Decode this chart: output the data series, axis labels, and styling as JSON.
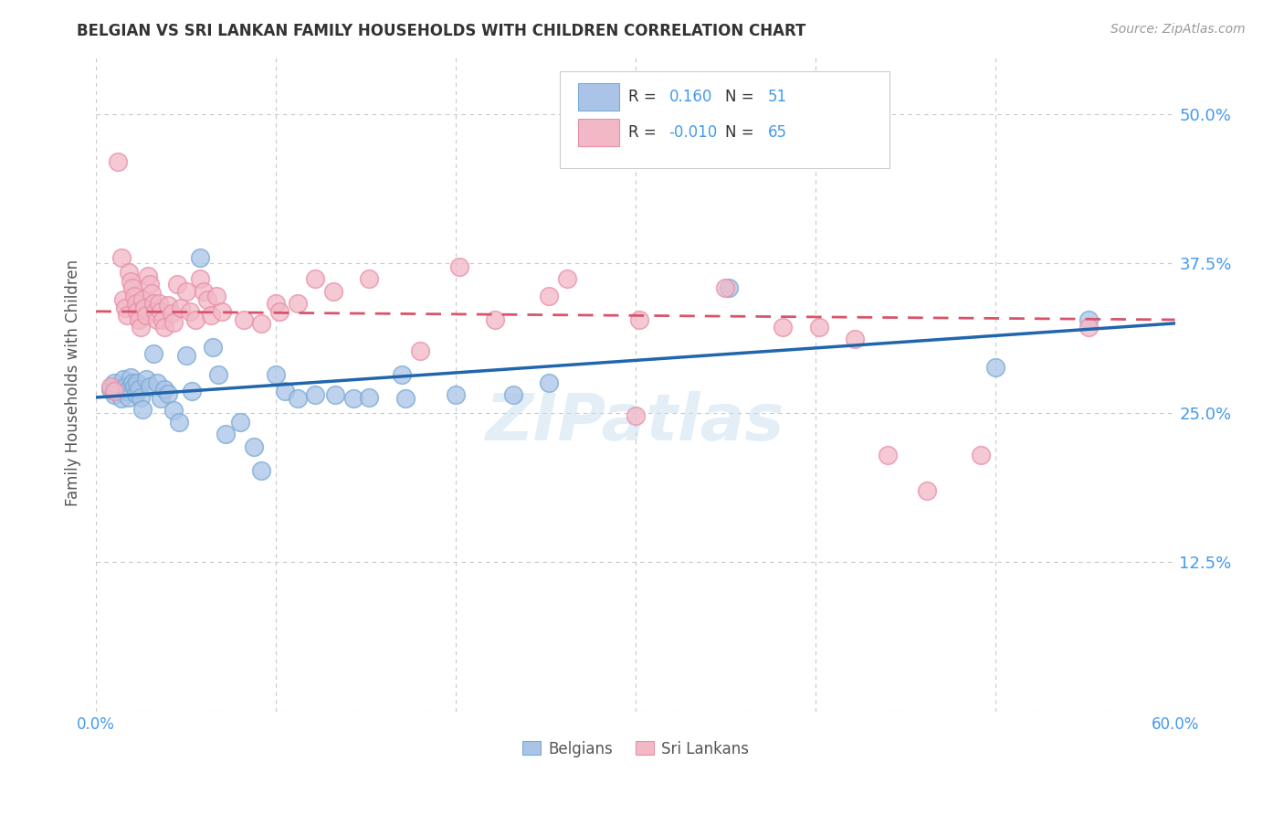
{
  "title": "BELGIAN VS SRI LANKAN FAMILY HOUSEHOLDS WITH CHILDREN CORRELATION CHART",
  "source": "Source: ZipAtlas.com",
  "ylabel": "Family Households with Children",
  "xlim": [
    0.0,
    0.6
  ],
  "ylim": [
    0.0,
    0.55
  ],
  "yticks": [
    0.0,
    0.125,
    0.25,
    0.375,
    0.5
  ],
  "ytick_labels": [
    "",
    "12.5%",
    "25.0%",
    "37.5%",
    "50.0%"
  ],
  "xticks": [
    0.0,
    0.1,
    0.2,
    0.3,
    0.4,
    0.5,
    0.6
  ],
  "xtick_labels": [
    "0.0%",
    "",
    "",
    "",
    "",
    "",
    "60.0%"
  ],
  "belgian_color": "#aac4e8",
  "srilanka_color": "#f2b8c6",
  "belgian_edge_color": "#7aaad4",
  "srilanka_edge_color": "#e890a8",
  "belgian_line_color": "#2166ac",
  "srilanka_line_color": "#d9536a",
  "belgian_R": 0.16,
  "belgian_N": 51,
  "srilanka_R": -0.01,
  "srilanka_N": 65,
  "grid_color": "#c8c8c8",
  "background_color": "#ffffff",
  "title_color": "#333333",
  "axis_label_color": "#555555",
  "tick_label_color": "#4499ee",
  "watermark": "ZIPatlas",
  "belgians_scatter": [
    [
      0.008,
      0.27
    ],
    [
      0.01,
      0.275
    ],
    [
      0.01,
      0.265
    ],
    [
      0.012,
      0.27
    ],
    [
      0.013,
      0.268
    ],
    [
      0.014,
      0.262
    ],
    [
      0.015,
      0.278
    ],
    [
      0.016,
      0.272
    ],
    [
      0.017,
      0.268
    ],
    [
      0.018,
      0.263
    ],
    [
      0.019,
      0.28
    ],
    [
      0.02,
      0.275
    ],
    [
      0.021,
      0.272
    ],
    [
      0.022,
      0.266
    ],
    [
      0.023,
      0.275
    ],
    [
      0.024,
      0.27
    ],
    [
      0.025,
      0.263
    ],
    [
      0.026,
      0.253
    ],
    [
      0.028,
      0.278
    ],
    [
      0.03,
      0.272
    ],
    [
      0.032,
      0.3
    ],
    [
      0.034,
      0.275
    ],
    [
      0.036,
      0.262
    ],
    [
      0.038,
      0.27
    ],
    [
      0.04,
      0.266
    ],
    [
      0.043,
      0.252
    ],
    [
      0.046,
      0.242
    ],
    [
      0.05,
      0.298
    ],
    [
      0.053,
      0.268
    ],
    [
      0.058,
      0.38
    ],
    [
      0.065,
      0.305
    ],
    [
      0.068,
      0.282
    ],
    [
      0.072,
      0.232
    ],
    [
      0.08,
      0.242
    ],
    [
      0.088,
      0.222
    ],
    [
      0.092,
      0.202
    ],
    [
      0.1,
      0.282
    ],
    [
      0.105,
      0.268
    ],
    [
      0.112,
      0.262
    ],
    [
      0.122,
      0.265
    ],
    [
      0.133,
      0.265
    ],
    [
      0.143,
      0.262
    ],
    [
      0.152,
      0.263
    ],
    [
      0.17,
      0.282
    ],
    [
      0.172,
      0.262
    ],
    [
      0.2,
      0.265
    ],
    [
      0.232,
      0.265
    ],
    [
      0.252,
      0.275
    ],
    [
      0.352,
      0.355
    ],
    [
      0.5,
      0.288
    ],
    [
      0.552,
      0.328
    ]
  ],
  "srilanka_scatter": [
    [
      0.008,
      0.272
    ],
    [
      0.01,
      0.268
    ],
    [
      0.012,
      0.46
    ],
    [
      0.014,
      0.38
    ],
    [
      0.015,
      0.345
    ],
    [
      0.016,
      0.338
    ],
    [
      0.017,
      0.332
    ],
    [
      0.018,
      0.368
    ],
    [
      0.019,
      0.36
    ],
    [
      0.02,
      0.355
    ],
    [
      0.021,
      0.348
    ],
    [
      0.022,
      0.342
    ],
    [
      0.023,
      0.335
    ],
    [
      0.024,
      0.328
    ],
    [
      0.025,
      0.322
    ],
    [
      0.026,
      0.345
    ],
    [
      0.027,
      0.338
    ],
    [
      0.028,
      0.332
    ],
    [
      0.029,
      0.365
    ],
    [
      0.03,
      0.358
    ],
    [
      0.031,
      0.35
    ],
    [
      0.032,
      0.342
    ],
    [
      0.033,
      0.335
    ],
    [
      0.034,
      0.328
    ],
    [
      0.035,
      0.342
    ],
    [
      0.036,
      0.335
    ],
    [
      0.037,
      0.328
    ],
    [
      0.038,
      0.322
    ],
    [
      0.04,
      0.34
    ],
    [
      0.042,
      0.333
    ],
    [
      0.043,
      0.326
    ],
    [
      0.045,
      0.358
    ],
    [
      0.047,
      0.338
    ],
    [
      0.05,
      0.352
    ],
    [
      0.052,
      0.335
    ],
    [
      0.055,
      0.328
    ],
    [
      0.058,
      0.362
    ],
    [
      0.06,
      0.352
    ],
    [
      0.062,
      0.345
    ],
    [
      0.064,
      0.332
    ],
    [
      0.067,
      0.348
    ],
    [
      0.07,
      0.335
    ],
    [
      0.082,
      0.328
    ],
    [
      0.092,
      0.325
    ],
    [
      0.1,
      0.342
    ],
    [
      0.102,
      0.335
    ],
    [
      0.112,
      0.342
    ],
    [
      0.122,
      0.362
    ],
    [
      0.132,
      0.352
    ],
    [
      0.152,
      0.362
    ],
    [
      0.18,
      0.302
    ],
    [
      0.202,
      0.372
    ],
    [
      0.222,
      0.328
    ],
    [
      0.252,
      0.348
    ],
    [
      0.262,
      0.362
    ],
    [
      0.302,
      0.328
    ],
    [
      0.35,
      0.355
    ],
    [
      0.382,
      0.322
    ],
    [
      0.402,
      0.322
    ],
    [
      0.422,
      0.312
    ],
    [
      0.44,
      0.215
    ],
    [
      0.462,
      0.185
    ],
    [
      0.492,
      0.215
    ],
    [
      0.552,
      0.322
    ],
    [
      0.3,
      0.248
    ]
  ]
}
